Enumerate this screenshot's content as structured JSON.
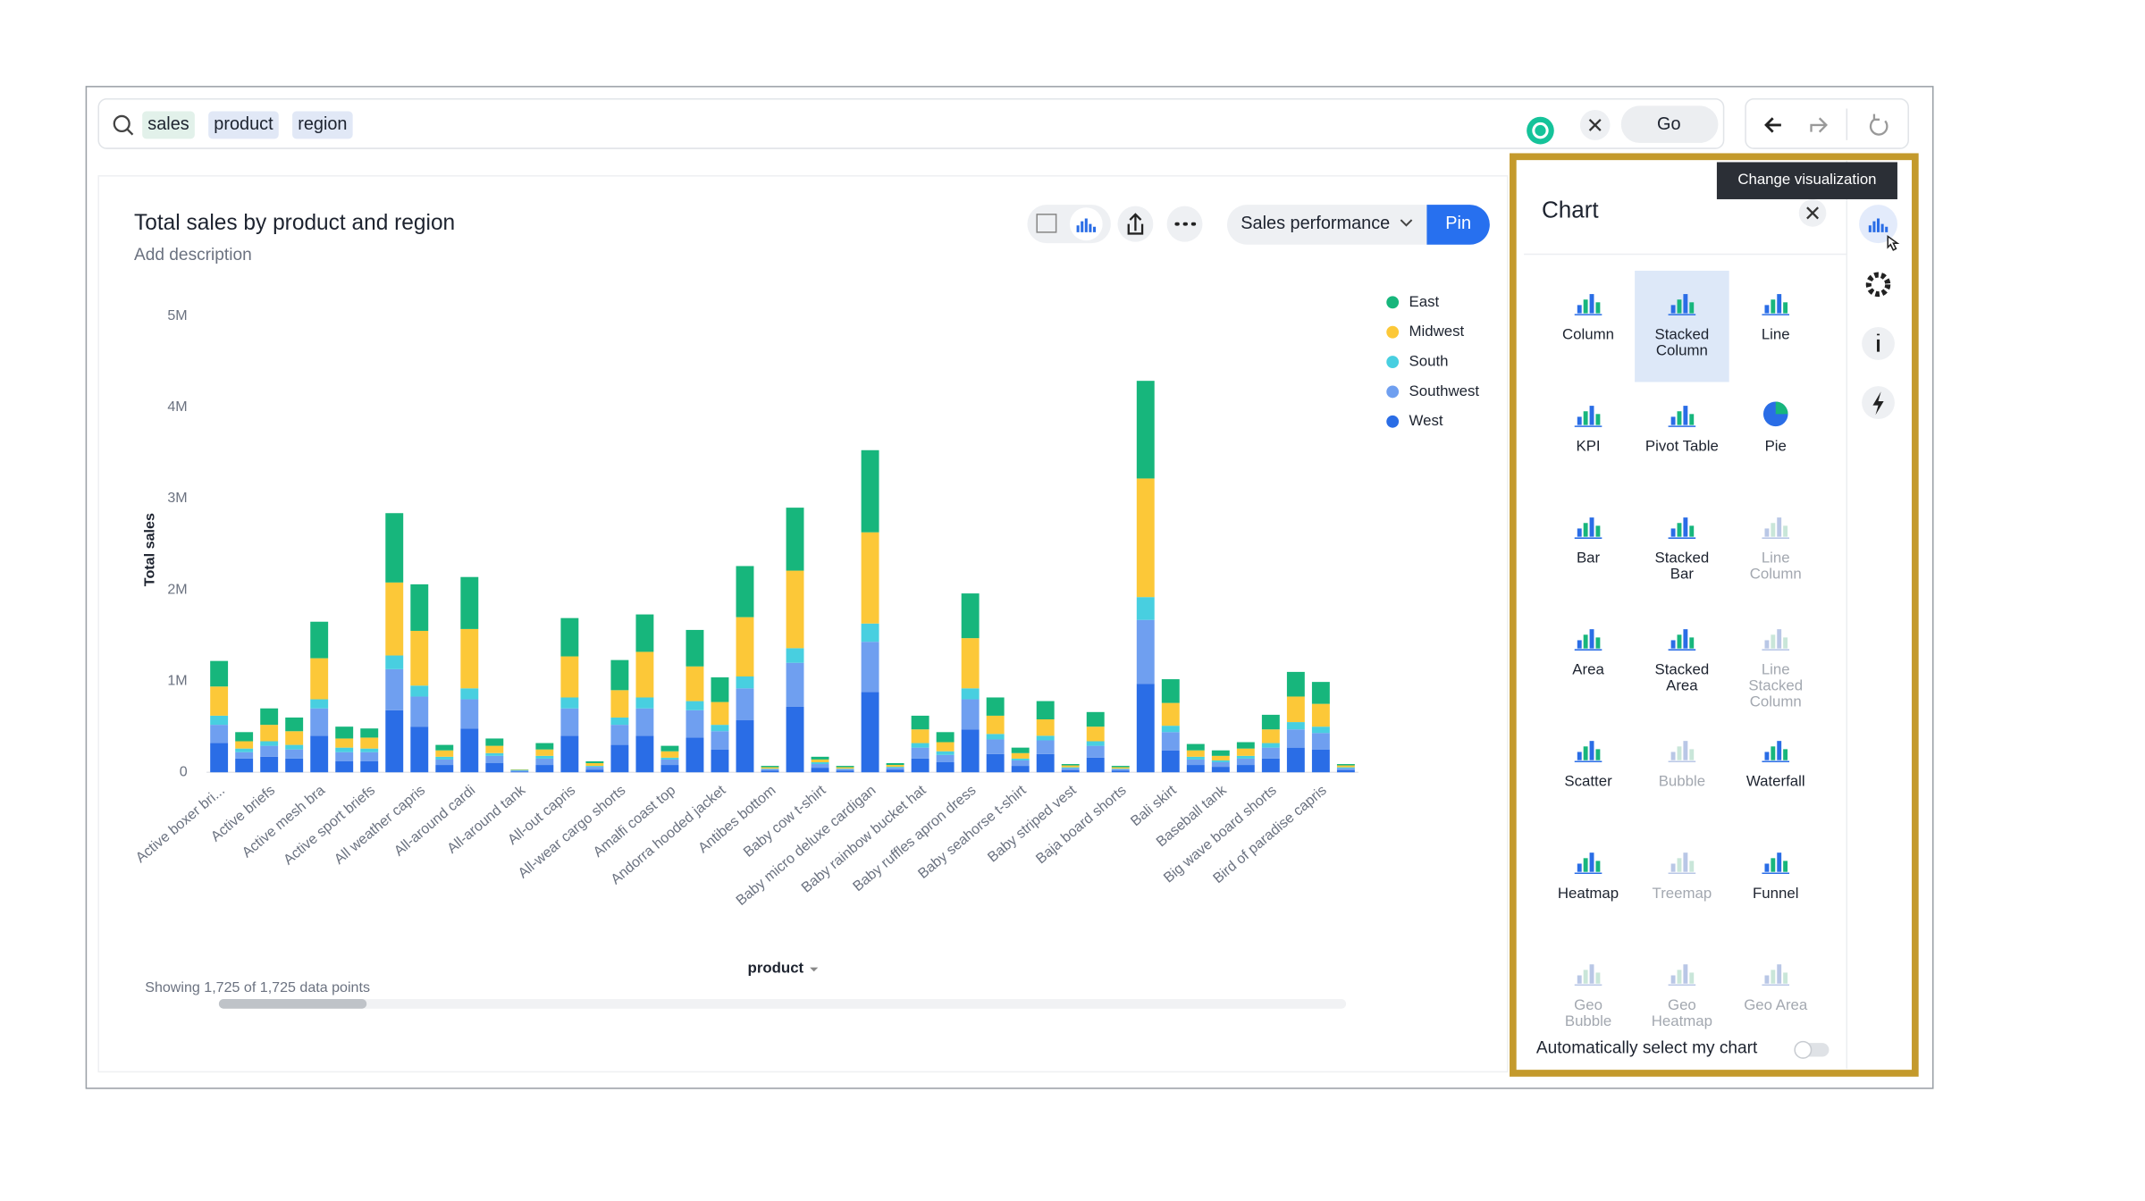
{
  "search": {
    "tokens": [
      "sales",
      "product",
      "region"
    ],
    "go": "Go"
  },
  "answer": {
    "title": "Total sales by product and region",
    "description": "Add description",
    "worksheet": "Sales performance",
    "pin": "Pin",
    "showing": "Showing 1,725 of 1,725 data points"
  },
  "chart_data": {
    "type": "bar",
    "stacked": true,
    "y_label": "Total sales",
    "x_label": "product",
    "legend": "top-right",
    "grid": false,
    "categories": [
      "Active boxer bri...",
      null,
      "Active briefs",
      null,
      "Active mesh bra",
      null,
      "Active sport briefs",
      null,
      "All weather capris",
      null,
      "All-around cardi",
      null,
      "All-around tank",
      null,
      "All-out capris",
      null,
      "All-wear cargo shorts",
      null,
      "Amalfi coast top",
      null,
      "Andorra hooded jacket",
      null,
      "Antibes bottom",
      null,
      "Baby cow t-shirt",
      null,
      "Baby micro deluxe cardigan",
      null,
      "Baby rainbow bucket hat",
      null,
      "Baby ruffles apron dress",
      null,
      "Baby seahorse t-shirt",
      null,
      "Baby striped vest",
      null,
      "Baja board shorts",
      null,
      "Bali skirt",
      null,
      "Baseball tank",
      null,
      "Big wave board shorts",
      null,
      "Bird of paradise capris",
      null
    ],
    "series": [
      {
        "name": "East",
        "color": "#17b67c",
        "values": [
          280000,
          100000,
          180000,
          150000,
          400000,
          130000,
          100000,
          760000,
          510000,
          60000,
          570000,
          80000,
          4000,
          70000,
          420000,
          20000,
          330000,
          410000,
          60000,
          400000,
          270000,
          560000,
          15000,
          690000,
          30000,
          15000,
          900000,
          20000,
          150000,
          110000,
          490000,
          200000,
          60000,
          200000,
          15000,
          160000,
          15000,
          1070000,
          260000,
          70000,
          60000,
          70000,
          160000,
          270000,
          240000,
          15000
        ]
      },
      {
        "name": "Midwest",
        "color": "#fcc838",
        "values": [
          320000,
          80000,
          180000,
          150000,
          450000,
          100000,
          120000,
          800000,
          600000,
          70000,
          650000,
          80000,
          4000,
          70000,
          450000,
          30000,
          300000,
          500000,
          70000,
          380000,
          250000,
          650000,
          15000,
          850000,
          30000,
          15000,
          1000000,
          20000,
          150000,
          100000,
          550000,
          200000,
          60000,
          180000,
          20000,
          160000,
          15000,
          1300000,
          250000,
          70000,
          50000,
          80000,
          150000,
          280000,
          250000,
          20000
        ]
      },
      {
        "name": "South",
        "color": "#48cfe0",
        "values": [
          100000,
          40000,
          50000,
          50000,
          100000,
          50000,
          40000,
          150000,
          120000,
          30000,
          120000,
          30000,
          4000,
          30000,
          120000,
          10000,
          80000,
          120000,
          20000,
          100000,
          70000,
          130000,
          5000,
          160000,
          20000,
          5000,
          200000,
          10000,
          50000,
          40000,
          120000,
          60000,
          20000,
          50000,
          10000,
          50000,
          5000,
          250000,
          70000,
          30000,
          20000,
          30000,
          50000,
          80000,
          70000,
          10000
        ]
      },
      {
        "name": "Southwest",
        "color": "#6f9ff0",
        "values": [
          200000,
          70000,
          120000,
          100000,
          300000,
          100000,
          100000,
          450000,
          330000,
          60000,
          320000,
          80000,
          8000,
          70000,
          300000,
          30000,
          220000,
          300000,
          60000,
          300000,
          200000,
          350000,
          15000,
          480000,
          40000,
          15000,
          550000,
          20000,
          120000,
          80000,
          330000,
          160000,
          60000,
          150000,
          20000,
          130000,
          15000,
          700000,
          200000,
          60000,
          50000,
          70000,
          120000,
          200000,
          180000,
          20000
        ]
      },
      {
        "name": "West",
        "color": "#2a6de6",
        "values": [
          320000,
          150000,
          170000,
          150000,
          400000,
          120000,
          120000,
          680000,
          500000,
          80000,
          480000,
          100000,
          10000,
          80000,
          400000,
          30000,
          300000,
          400000,
          80000,
          380000,
          250000,
          570000,
          20000,
          720000,
          50000,
          20000,
          880000,
          30000,
          150000,
          110000,
          470000,
          200000,
          70000,
          200000,
          25000,
          160000,
          20000,
          970000,
          240000,
          80000,
          60000,
          80000,
          150000,
          270000,
          250000,
          25000
        ]
      }
    ],
    "ylim": [
      0,
      5000000
    ],
    "yticks": [
      0,
      {
        "value": 1000000,
        "label": "1M"
      },
      {
        "value": 2000000,
        "label": "2M"
      },
      {
        "value": 3000000,
        "label": "3M"
      },
      {
        "value": 4000000,
        "label": "4M"
      },
      {
        "value": 5000000,
        "label": "5M"
      }
    ]
  },
  "panel": {
    "title": "Chart",
    "tooltip": "Change visualization",
    "auto": "Automatically select my chart",
    "types": [
      {
        "label": [
          "Column"
        ],
        "enabled": true,
        "selected": false
      },
      {
        "label": [
          "Stacked",
          "Column"
        ],
        "enabled": true,
        "selected": true
      },
      {
        "label": [
          "Line"
        ],
        "enabled": true,
        "selected": false
      },
      {
        "label": [
          "KPI"
        ],
        "enabled": true,
        "selected": false
      },
      {
        "label": [
          "Pivot Table"
        ],
        "enabled": true,
        "selected": false
      },
      {
        "label": [
          "Pie"
        ],
        "enabled": true,
        "selected": false
      },
      {
        "label": [
          "Bar"
        ],
        "enabled": true,
        "selected": false
      },
      {
        "label": [
          "Stacked",
          "Bar"
        ],
        "enabled": true,
        "selected": false
      },
      {
        "label": [
          "Line",
          "Column"
        ],
        "enabled": false,
        "selected": false
      },
      {
        "label": [
          "Area"
        ],
        "enabled": true,
        "selected": false
      },
      {
        "label": [
          "Stacked",
          "Area"
        ],
        "enabled": true,
        "selected": false
      },
      {
        "label": [
          "Line",
          "Stacked",
          "Column"
        ],
        "enabled": false,
        "selected": false
      },
      {
        "label": [
          "Scatter"
        ],
        "enabled": true,
        "selected": false
      },
      {
        "label": [
          "Bubble"
        ],
        "enabled": false,
        "selected": false
      },
      {
        "label": [
          "Waterfall"
        ],
        "enabled": true,
        "selected": false
      },
      {
        "label": [
          "Heatmap"
        ],
        "enabled": true,
        "selected": false
      },
      {
        "label": [
          "Treemap"
        ],
        "enabled": false,
        "selected": false
      },
      {
        "label": [
          "Funnel"
        ],
        "enabled": true,
        "selected": false
      },
      {
        "label": [
          "Geo",
          "Bubble"
        ],
        "enabled": false,
        "selected": false
      },
      {
        "label": [
          "Geo",
          "Heatmap"
        ],
        "enabled": false,
        "selected": false
      },
      {
        "label": [
          "Geo Area"
        ],
        "enabled": false,
        "selected": false
      }
    ]
  }
}
